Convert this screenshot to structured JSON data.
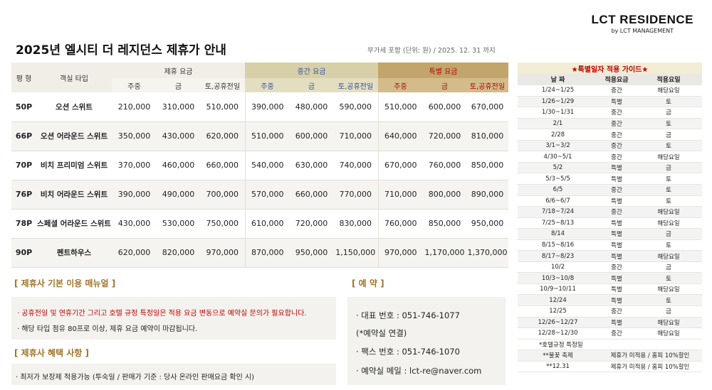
{
  "brand": {
    "name": "LCT RESIDENCE",
    "sub": "by LCT MANAGEMENT"
  },
  "title": "2025년 엘시티 더 레지던스 제휴가 안내",
  "vat_note": "부가세 포함 (단위: 원) / 2025. 12. 31 까지",
  "rate_table": {
    "col_pyeong": "평 형",
    "col_room": "객실 타입",
    "groups": [
      "제휴 요금",
      "중간 요금",
      "특별 요금"
    ],
    "subcols": [
      "주중",
      "금",
      "토,공휴전일"
    ],
    "rows": [
      {
        "pyeong": "50P",
        "room": "오션 스위트",
        "rates": [
          "210,000",
          "310,000",
          "510,000",
          "390,000",
          "480,000",
          "590,000",
          "510,000",
          "600,000",
          "670,000"
        ]
      },
      {
        "pyeong": "66P",
        "room": "오션 어라운드 스위트",
        "rates": [
          "350,000",
          "430,000",
          "620,000",
          "510,000",
          "600,000",
          "710,000",
          "640,000",
          "720,000",
          "810,000"
        ]
      },
      {
        "pyeong": "70P",
        "room": "비치 프리미엄 스위트",
        "rates": [
          "370,000",
          "460,000",
          "660,000",
          "540,000",
          "630,000",
          "740,000",
          "670,000",
          "760,000",
          "850,000"
        ]
      },
      {
        "pyeong": "76P",
        "room": "비치 어라운드 스위트",
        "rates": [
          "390,000",
          "490,000",
          "700,000",
          "570,000",
          "660,000",
          "770,000",
          "710,000",
          "800,000",
          "890,000"
        ]
      },
      {
        "pyeong": "78P",
        "room": "스페셜 어라운드 스위트",
        "rates": [
          "430,000",
          "530,000",
          "750,000",
          "610,000",
          "720,000",
          "830,000",
          "760,000",
          "850,000",
          "950,000"
        ]
      },
      {
        "pyeong": "90P",
        "room": "펜트하우스",
        "rates": [
          "620,000",
          "820,000",
          "970,000",
          "870,000",
          "950,000",
          "1,150,000",
          "970,000",
          "1,170,000",
          "1,370,000"
        ]
      }
    ]
  },
  "manual": {
    "title": "[ 제휴사 기본 이용 매뉴얼 ]",
    "line1": "· 공휴전일 및 연휴기간 그리고 호텔 규정 특정일은 적용 요금 변동으로 예약실 문의가 필요합니다.",
    "line2": "· 해당 타입 점유 80프로 이상, 제휴 요금 예약이 마감됩니다."
  },
  "benefit": {
    "title": "[ 제휴사 혜택 사항 ]",
    "line1": "· 최저가 보장제 적용가능 (투숙일 / 판매가 기준 : 당사 온라인  판매요금 확인 시)"
  },
  "reservation": {
    "title": "[ 예 약 ]",
    "phone": "· 대표 번호 : 051-746-1077",
    "phone_note": "(*예약실 연결)",
    "fax": "· 팩스 번호 : 051-746-1070",
    "email": "· 예약실 메일 : lct-re@naver.com"
  },
  "guide": {
    "title": "★특별일자 적용 가이드★",
    "headers": [
      "날 짜",
      "적용요금",
      "적용요일"
    ],
    "rows": [
      [
        "1/24~1/25",
        "중간",
        "해당요일"
      ],
      [
        "1/26~1/29",
        "특별",
        "토"
      ],
      [
        "1/30~1/31",
        "중간",
        "금"
      ],
      [
        "2/1",
        "중간",
        "토"
      ],
      [
        "2/28",
        "중간",
        "금"
      ],
      [
        "3/1~3/2",
        "중간",
        "토"
      ],
      [
        "4/30~5/1",
        "중간",
        "해당요일"
      ],
      [
        "5/2",
        "특별",
        "금"
      ],
      [
        "5/3~5/5",
        "특별",
        "토"
      ],
      [
        "6/5",
        "중간",
        "토"
      ],
      [
        "6/6~6/7",
        "특별",
        "토"
      ],
      [
        "7/18~7/24",
        "중간",
        "해당요일"
      ],
      [
        "7/25~8/13",
        "특별",
        "해당요일"
      ],
      [
        "8/14",
        "특별",
        "금"
      ],
      [
        "8/15~8/16",
        "특별",
        "토"
      ],
      [
        "8/17~8/23",
        "특별",
        "해당요일"
      ],
      [
        "10/2",
        "중간",
        "금"
      ],
      [
        "10/3~10/8",
        "특별",
        "토"
      ],
      [
        "10/9~10/11",
        "특별",
        "해당요일"
      ],
      [
        "12/24",
        "특별",
        "토"
      ],
      [
        "12/25",
        "중간",
        "금"
      ],
      [
        "12/26~12/27",
        "특별",
        "해당요일"
      ],
      [
        "12/28~12/30",
        "중간",
        "해당요일"
      ]
    ],
    "notes_title": "*호텔규정 특정일",
    "notes": [
      [
        "**불꽃 축제",
        "제휴가 미적용 / 홈피 10%할인"
      ],
      [
        "**12.31",
        "제휴가 미적용 / 홈피 10%할인"
      ]
    ],
    "special_color": "#c00000"
  }
}
